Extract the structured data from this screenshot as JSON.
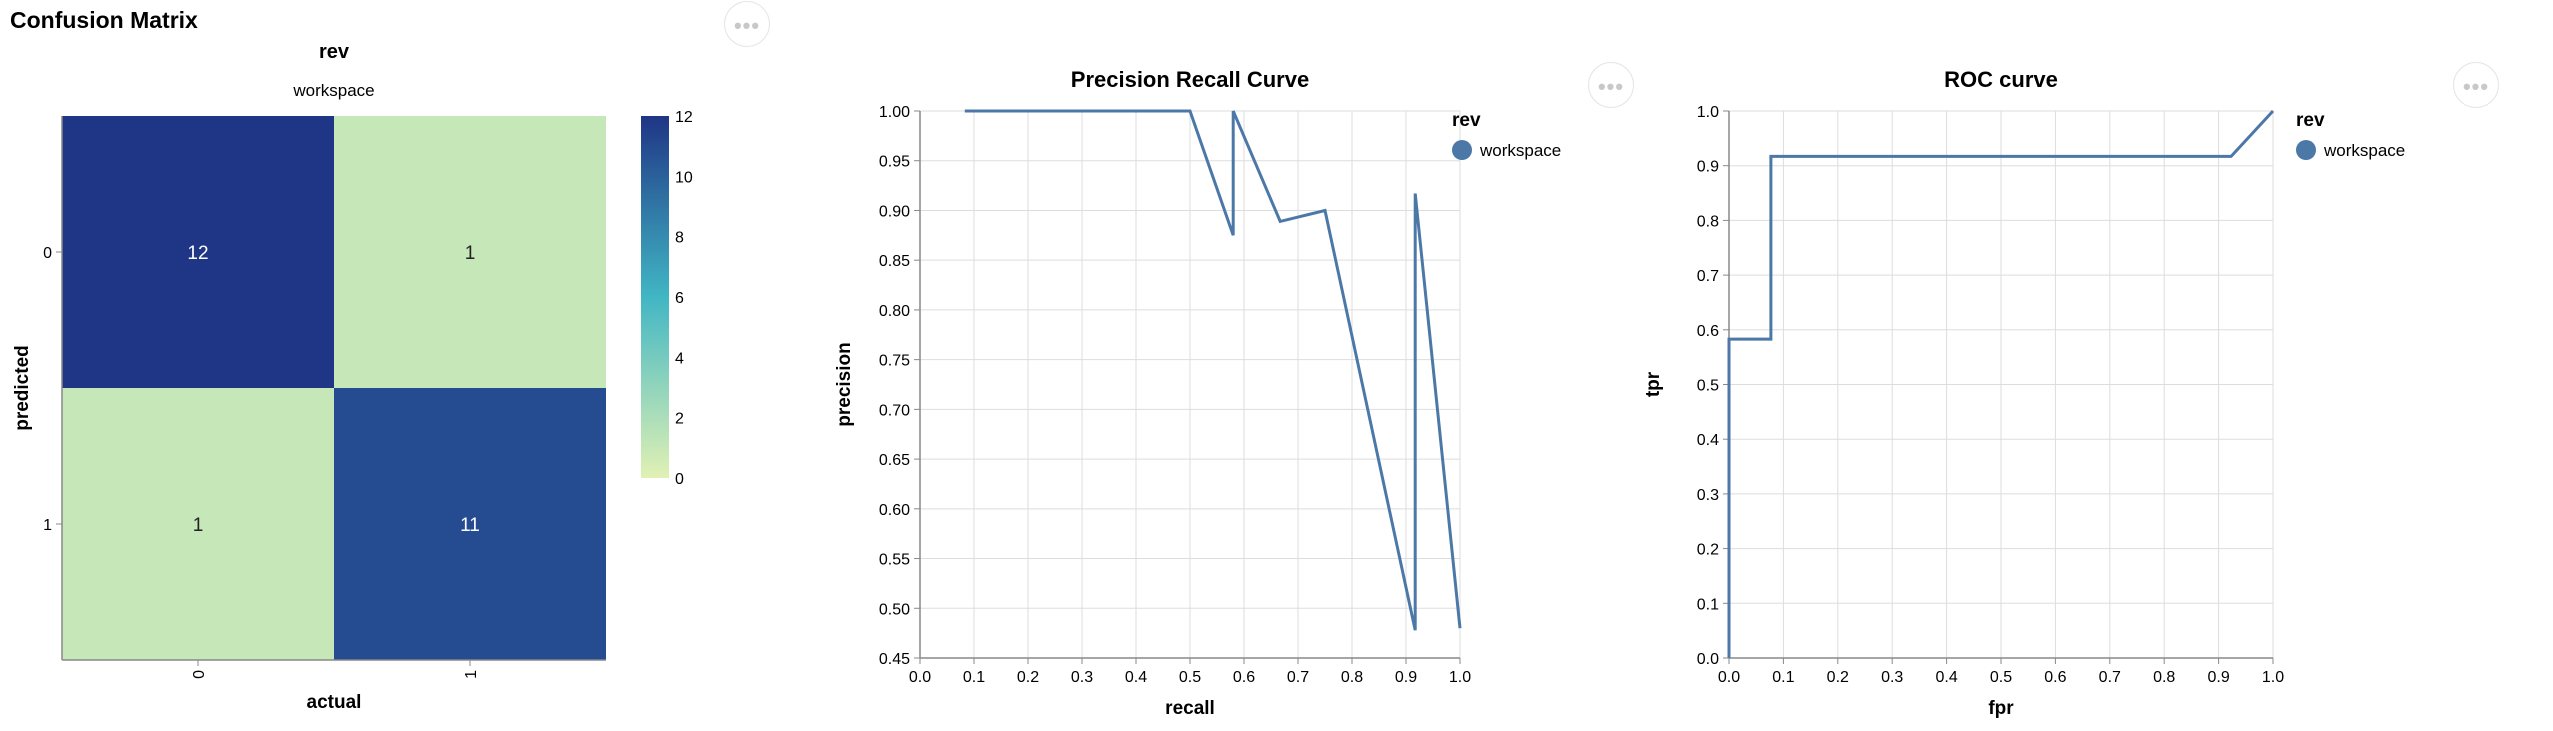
{
  "menu_glyph": "•••",
  "chart_data": [
    {
      "type": "heatmap",
      "title": "Confusion Matrix",
      "facet_header": "rev",
      "facet_value": "workspace",
      "xlabel": "actual",
      "ylabel": "predicted",
      "x_categories": [
        "0",
        "1"
      ],
      "y_categories": [
        "0",
        "1"
      ],
      "cells": [
        {
          "actual": "0",
          "predicted": "0",
          "value": 12
        },
        {
          "actual": "1",
          "predicted": "0",
          "value": 1
        },
        {
          "actual": "0",
          "predicted": "1",
          "value": 1
        },
        {
          "actual": "1",
          "predicted": "1",
          "value": 11
        }
      ],
      "color_scale": {
        "domain": [
          0,
          12
        ],
        "ticks": [
          0,
          2,
          4,
          6,
          8,
          10,
          12
        ],
        "low_color": "#e1f1b4",
        "high_color": "#1f3585"
      }
    },
    {
      "type": "line",
      "title": "Precision Recall Curve",
      "xlabel": "recall",
      "ylabel": "precision",
      "xlim": [
        0,
        1
      ],
      "ylim": [
        0.45,
        1.0
      ],
      "x_ticks": [
        "0.0",
        "0.1",
        "0.2",
        "0.3",
        "0.4",
        "0.5",
        "0.6",
        "0.7",
        "0.8",
        "0.9",
        "1.0"
      ],
      "y_ticks": [
        "0.45",
        "0.50",
        "0.55",
        "0.60",
        "0.65",
        "0.70",
        "0.75",
        "0.80",
        "0.85",
        "0.90",
        "0.95",
        "1.00"
      ],
      "grid": true,
      "legend": {
        "title": "rev",
        "position": "right",
        "entries": [
          "workspace"
        ]
      },
      "series": [
        {
          "name": "workspace",
          "color": "#4c78a8",
          "points": [
            [
              0.083,
              1.0
            ],
            [
              0.5,
              1.0
            ],
            [
              0.58,
              0.875
            ],
            [
              0.58,
              1.0
            ],
            [
              0.667,
              0.889
            ],
            [
              0.75,
              0.9
            ],
            [
              0.917,
              0.478
            ],
            [
              0.917,
              0.917
            ],
            [
              1.0,
              0.48
            ]
          ]
        }
      ]
    },
    {
      "type": "line",
      "title": "ROC curve",
      "xlabel": "fpr",
      "ylabel": "tpr",
      "xlim": [
        0,
        1
      ],
      "ylim": [
        0,
        1
      ],
      "x_ticks": [
        "0.0",
        "0.1",
        "0.2",
        "0.3",
        "0.4",
        "0.5",
        "0.6",
        "0.7",
        "0.8",
        "0.9",
        "1.0"
      ],
      "y_ticks": [
        "0.0",
        "0.1",
        "0.2",
        "0.3",
        "0.4",
        "0.5",
        "0.6",
        "0.7",
        "0.8",
        "0.9",
        "1.0"
      ],
      "grid": true,
      "legend": {
        "title": "rev",
        "position": "right",
        "entries": [
          "workspace"
        ]
      },
      "series": [
        {
          "name": "workspace",
          "color": "#4c78a8",
          "points": [
            [
              0,
              0
            ],
            [
              0,
              0.583
            ],
            [
              0.077,
              0.583
            ],
            [
              0.077,
              0.917
            ],
            [
              0.923,
              0.917
            ],
            [
              1.0,
              1.0
            ]
          ]
        }
      ]
    }
  ]
}
